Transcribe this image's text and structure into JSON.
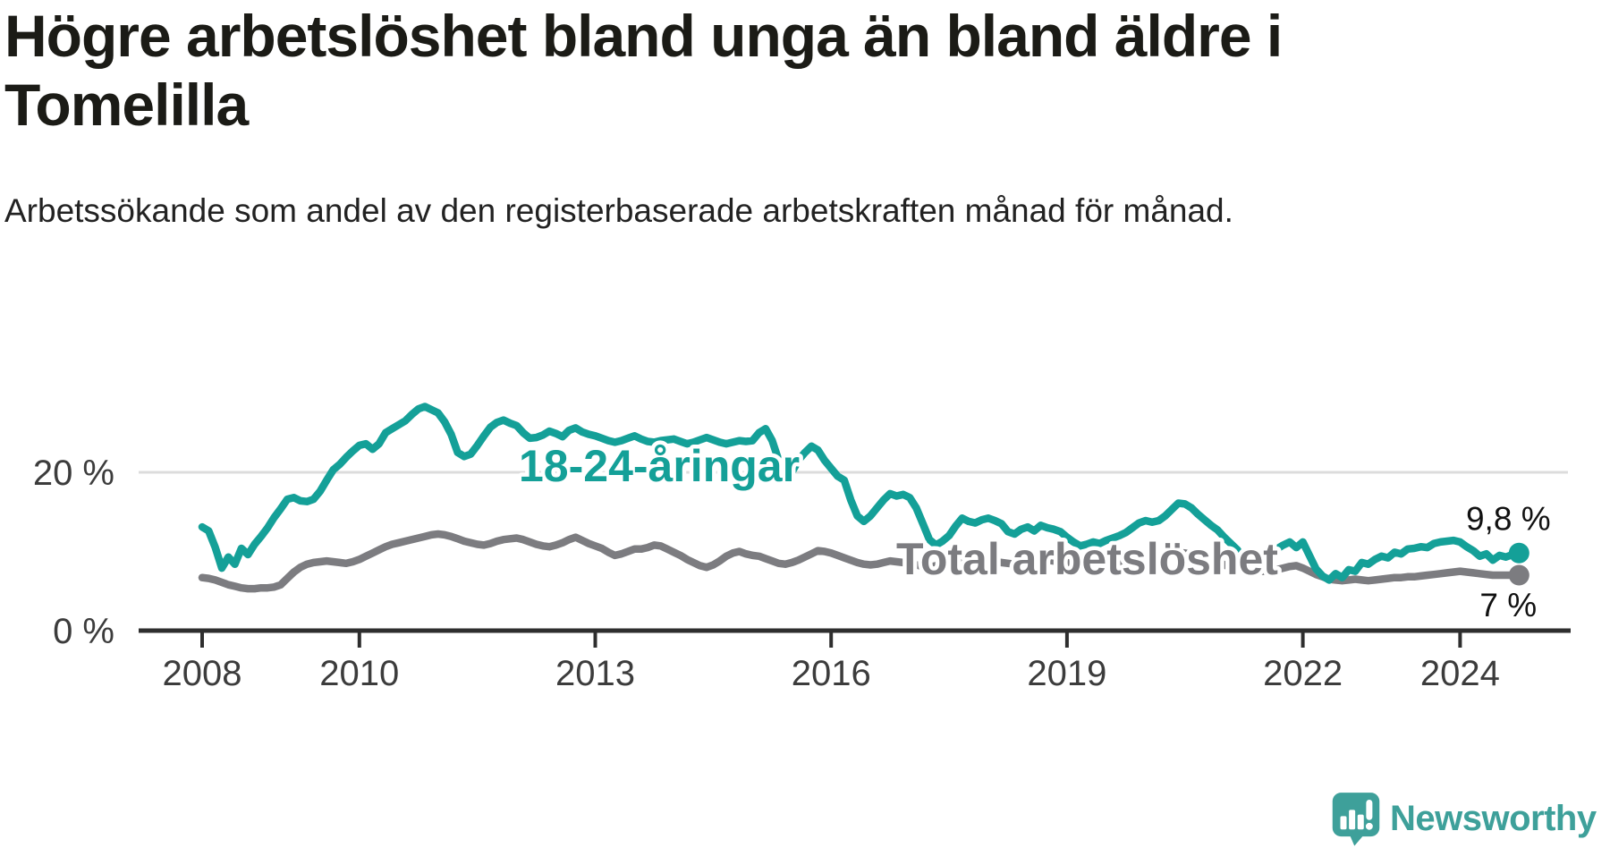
{
  "header": {
    "title": "Högre arbetslöshet bland unga än bland äldre i Tomelilla",
    "subtitle": "Arbetssökande som andel av den registerbaserade arbetskraften månad för månad."
  },
  "branding": {
    "logo_text": "Newsworthy",
    "logo_color": "#3ea09a",
    "logo_icon": "speech-bubble-bar-chart-icon"
  },
  "colors": {
    "youth_line": "#14a098",
    "total_line": "#7c7c80",
    "axis": "#2e2e2e",
    "grid": "#dcdcdc",
    "axis_text": "#3c3c3c",
    "annotation_text": "#111111",
    "background": "#ffffff"
  },
  "chart_data": {
    "type": "line",
    "title": "Högre arbetslöshet bland unga än bland äldre i Tomelilla",
    "subtitle": "Arbetssökande som andel av den registerbaserade arbetskraften månad för månad.",
    "xlabel": "",
    "ylabel": "",
    "x_start": {
      "year": 2008,
      "month": 1
    },
    "x_end": {
      "year": 2024,
      "month": 10
    },
    "x_ticks": [
      2008,
      2010,
      2013,
      2016,
      2019,
      2022,
      2024
    ],
    "y_ticks": [
      {
        "value": 0,
        "label": "0 %"
      },
      {
        "value": 20,
        "label": "20 %"
      }
    ],
    "ylim": [
      0,
      30
    ],
    "grid": "horizontal gridline at 20 % only",
    "legend_position": "inline labels on lines, end-value labels at right",
    "series": [
      {
        "name": "18-24-åringar",
        "color": "#14a098",
        "end_label": "9,8 %",
        "end_value": 9.8,
        "values": [
          13.1,
          12.6,
          10.5,
          7.9,
          9.3,
          8.4,
          10.4,
          9.6,
          10.9,
          11.9,
          13.0,
          14.3,
          15.4,
          16.6,
          16.8,
          16.4,
          16.3,
          16.6,
          17.6,
          19.0,
          20.3,
          21.0,
          21.9,
          22.7,
          23.4,
          23.6,
          22.9,
          23.6,
          25.0,
          25.5,
          26.0,
          26.5,
          27.3,
          28.0,
          28.3,
          27.9,
          27.5,
          26.4,
          24.8,
          22.5,
          22.0,
          22.3,
          23.4,
          24.6,
          25.7,
          26.3,
          26.6,
          26.2,
          25.9,
          25.0,
          24.3,
          24.4,
          24.7,
          25.2,
          24.9,
          24.5,
          25.3,
          25.6,
          25.1,
          24.8,
          24.6,
          24.3,
          24.0,
          23.8,
          24.0,
          24.3,
          24.6,
          24.2,
          23.9,
          23.8,
          24.0,
          24.1,
          24.2,
          23.9,
          23.6,
          23.8,
          24.1,
          24.4,
          24.1,
          23.8,
          23.6,
          23.8,
          24.0,
          23.9,
          24.0,
          25.0,
          25.5,
          24.0,
          21.5,
          19.2,
          20.0,
          21.5,
          22.5,
          23.3,
          22.8,
          21.5,
          20.5,
          19.5,
          19.0,
          16.5,
          14.5,
          13.8,
          14.5,
          15.5,
          16.5,
          17.3,
          17.0,
          17.2,
          16.8,
          15.5,
          13.5,
          11.5,
          10.8,
          11.3,
          12.0,
          13.2,
          14.2,
          13.8,
          13.6,
          14.0,
          14.2,
          13.9,
          13.5,
          12.5,
          12.2,
          12.8,
          13.1,
          12.6,
          13.3,
          13.0,
          12.8,
          12.5,
          11.8,
          11.2,
          10.7,
          10.9,
          11.2,
          11.0,
          11.4,
          11.7,
          12.0,
          12.4,
          13.0,
          13.6,
          13.9,
          13.7,
          13.9,
          14.5,
          15.3,
          16.1,
          16.0,
          15.5,
          14.7,
          14.0,
          13.3,
          12.7,
          11.8,
          11.0,
          10.2,
          8.8,
          9.9,
          9.3,
          9.2,
          9.7,
          10.3,
          10.8,
          11.2,
          10.5,
          11.2,
          9.5,
          7.8,
          6.9,
          6.4,
          7.2,
          6.7,
          7.7,
          7.5,
          8.6,
          8.4,
          9.0,
          9.4,
          9.2,
          9.9,
          9.7,
          10.3,
          10.4,
          10.6,
          10.5,
          11.0,
          11.2,
          11.3,
          11.4,
          11.2,
          10.6,
          10.1,
          9.4,
          9.7,
          8.9,
          9.5,
          9.3,
          9.6,
          9.8
        ]
      },
      {
        "name": "Total arbetslöshet",
        "color": "#7c7c80",
        "end_label": "7 %",
        "end_value": 7.0,
        "values": [
          6.7,
          6.6,
          6.4,
          6.1,
          5.8,
          5.6,
          5.4,
          5.3,
          5.3,
          5.4,
          5.4,
          5.5,
          5.8,
          6.6,
          7.4,
          8.0,
          8.4,
          8.6,
          8.7,
          8.8,
          8.7,
          8.6,
          8.5,
          8.7,
          9.0,
          9.4,
          9.8,
          10.2,
          10.6,
          10.9,
          11.1,
          11.3,
          11.5,
          11.7,
          11.9,
          12.1,
          12.2,
          12.1,
          11.9,
          11.6,
          11.3,
          11.1,
          10.9,
          10.8,
          11.0,
          11.3,
          11.5,
          11.6,
          11.7,
          11.5,
          11.2,
          10.9,
          10.7,
          10.6,
          10.8,
          11.1,
          11.5,
          11.8,
          11.4,
          11.0,
          10.7,
          10.4,
          9.9,
          9.5,
          9.7,
          10.0,
          10.3,
          10.3,
          10.5,
          10.8,
          10.7,
          10.3,
          9.9,
          9.5,
          9.0,
          8.6,
          8.2,
          8.0,
          8.3,
          8.8,
          9.4,
          9.8,
          10.0,
          9.7,
          9.5,
          9.4,
          9.1,
          8.8,
          8.5,
          8.4,
          8.6,
          8.9,
          9.3,
          9.7,
          10.1,
          10.0,
          9.8,
          9.5,
          9.2,
          8.9,
          8.6,
          8.4,
          8.3,
          8.4,
          8.6,
          8.8,
          8.7,
          8.6,
          8.5,
          8.3,
          8.1,
          8.0,
          8.2,
          8.4,
          8.6,
          8.8,
          9.0,
          9.1,
          9.0,
          8.9,
          8.8,
          8.7,
          8.6,
          8.5,
          8.4,
          8.5,
          8.7,
          8.9,
          9.0,
          8.9,
          8.8,
          8.7,
          8.6,
          8.4,
          8.3,
          8.2,
          8.3,
          8.4,
          8.5,
          8.6,
          8.7,
          8.8,
          8.9,
          9.0,
          9.1,
          9.2,
          9.4,
          9.6,
          9.8,
          9.9,
          9.8,
          9.6,
          9.4,
          9.2,
          9.0,
          8.8,
          8.3,
          8.0,
          7.8,
          7.7,
          7.6,
          7.5,
          7.5,
          7.6,
          7.7,
          7.9,
          8.1,
          8.2,
          7.9,
          7.5,
          7.1,
          6.8,
          6.5,
          6.4,
          6.3,
          6.4,
          6.5,
          6.4,
          6.3,
          6.4,
          6.5,
          6.6,
          6.7,
          6.7,
          6.8,
          6.8,
          6.9,
          7.0,
          7.1,
          7.2,
          7.3,
          7.4,
          7.5,
          7.4,
          7.3,
          7.2,
          7.1,
          7.0,
          7.0,
          7.0,
          7.0,
          7.0
        ]
      }
    ]
  }
}
